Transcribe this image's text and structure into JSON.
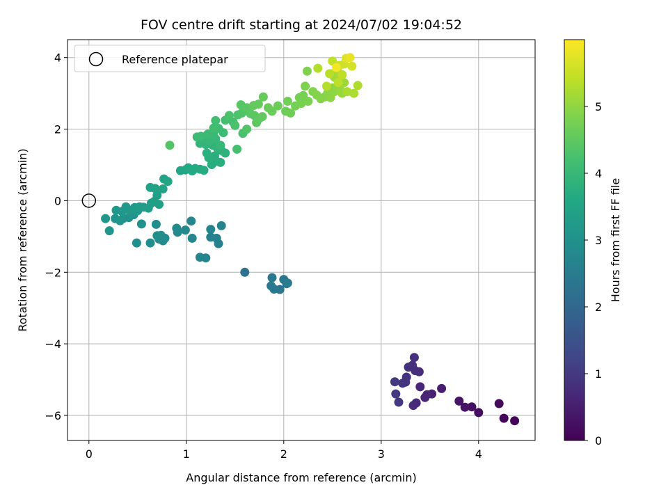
{
  "chart_data": {
    "type": "scatter",
    "title": "FOV centre drift starting at 2024/07/02 19:04:52",
    "xlabel": "Angular distance from reference (arcmin)",
    "ylabel": "Rotation from reference (arcmin)",
    "colorbar_label": "Hours from first FF file",
    "colormap": "viridis",
    "xlim": [
      -0.22,
      4.58
    ],
    "ylim": [
      -6.7,
      4.5
    ],
    "clim": [
      0,
      6.0
    ],
    "xticks": [
      "0",
      "1",
      "2",
      "3",
      "4"
    ],
    "yticks": [
      "−6",
      "−4",
      "−2",
      "0",
      "2",
      "4"
    ],
    "cticks": [
      "0",
      "1",
      "2",
      "3",
      "4",
      "5"
    ],
    "grid": true,
    "legend": {
      "position": "top-left",
      "entries": [
        "Reference platepar"
      ]
    },
    "reference_point": {
      "x": 0,
      "y": 0
    },
    "points": [
      [
        4.37,
        -6.15,
        0.05
      ],
      [
        4.26,
        -6.08,
        0.1
      ],
      [
        4.21,
        -5.67,
        0.15
      ],
      [
        4.0,
        -5.92,
        0.2
      ],
      [
        3.93,
        -5.76,
        0.25
      ],
      [
        3.86,
        -5.77,
        0.3
      ],
      [
        3.8,
        -5.6,
        0.35
      ],
      [
        3.62,
        -5.25,
        0.5
      ],
      [
        3.52,
        -5.4,
        0.55
      ],
      [
        3.47,
        -5.42,
        0.6
      ],
      [
        3.45,
        -5.5,
        0.62
      ],
      [
        3.4,
        -5.2,
        0.65
      ],
      [
        3.36,
        -5.65,
        0.7
      ],
      [
        3.33,
        -5.72,
        0.72
      ],
      [
        3.39,
        -4.78,
        0.75
      ],
      [
        3.35,
        -4.75,
        0.78
      ],
      [
        3.32,
        -4.6,
        0.8
      ],
      [
        3.28,
        -4.65,
        0.82
      ],
      [
        3.34,
        -4.38,
        0.85
      ],
      [
        3.26,
        -4.93,
        0.88
      ],
      [
        3.25,
        -5.07,
        0.9
      ],
      [
        3.22,
        -5.1,
        0.92
      ],
      [
        3.18,
        -5.63,
        0.95
      ],
      [
        3.15,
        -5.4,
        0.97
      ],
      [
        3.14,
        -5.06,
        1.0
      ],
      [
        1.6,
        -2.0,
        2.25
      ],
      [
        2.03,
        -2.32,
        2.3
      ],
      [
        2.0,
        -2.2,
        2.33
      ],
      [
        1.96,
        -2.48,
        2.36
      ],
      [
        1.9,
        -2.47,
        2.4
      ],
      [
        1.87,
        -2.38,
        2.42
      ],
      [
        1.88,
        -2.15,
        2.45
      ],
      [
        2.04,
        -2.3,
        2.48
      ],
      [
        1.33,
        -1.2,
        2.6
      ],
      [
        1.31,
        -1.05,
        2.62
      ],
      [
        1.36,
        -0.7,
        2.64
      ],
      [
        1.25,
        -1.02,
        2.66
      ],
      [
        1.25,
        -0.8,
        2.68
      ],
      [
        1.2,
        -1.6,
        2.7
      ],
      [
        1.14,
        -1.58,
        2.72
      ],
      [
        1.06,
        -1.05,
        2.74
      ],
      [
        1.05,
        -0.57,
        2.76
      ],
      [
        0.99,
        -0.82,
        2.78
      ],
      [
        0.91,
        -0.88,
        2.8
      ],
      [
        0.9,
        -0.77,
        2.82
      ],
      [
        0.78,
        -1.05,
        2.85
      ],
      [
        0.76,
        -1.12,
        2.87
      ],
      [
        0.74,
        -0.97,
        2.89
      ],
      [
        0.72,
        -1.07,
        2.9
      ],
      [
        0.7,
        -0.98,
        2.92
      ],
      [
        0.69,
        -0.66,
        2.93
      ],
      [
        0.63,
        -1.18,
        2.95
      ],
      [
        0.49,
        -1.18,
        2.97
      ],
      [
        0.54,
        -0.65,
        3.0
      ],
      [
        0.41,
        -0.47,
        3.02
      ],
      [
        0.46,
        -0.39,
        3.04
      ],
      [
        0.35,
        -0.5,
        3.06
      ],
      [
        0.32,
        -0.56,
        3.08
      ],
      [
        0.27,
        -0.5,
        3.1
      ],
      [
        0.21,
        -0.84,
        3.12
      ],
      [
        0.17,
        -0.5,
        3.14
      ],
      [
        0.28,
        -0.27,
        3.16
      ],
      [
        0.34,
        -0.3,
        3.18
      ],
      [
        0.38,
        -0.17,
        3.2
      ],
      [
        0.42,
        -0.28,
        3.22
      ],
      [
        0.47,
        -0.19,
        3.24
      ],
      [
        0.5,
        -0.28,
        3.26
      ],
      [
        0.52,
        -0.17,
        3.28
      ],
      [
        0.56,
        -0.18,
        3.3
      ],
      [
        0.61,
        -0.21,
        3.32
      ],
      [
        0.64,
        -0.07,
        3.34
      ],
      [
        0.67,
        -0.02,
        3.36
      ],
      [
        0.7,
        0.15,
        3.38
      ],
      [
        0.72,
        -0.1,
        3.4
      ],
      [
        0.68,
        0.34,
        3.42
      ],
      [
        0.63,
        0.37,
        3.44
      ],
      [
        0.76,
        0.33,
        3.46
      ],
      [
        0.77,
        0.61,
        3.48
      ],
      [
        0.81,
        0.54,
        3.5
      ],
      [
        0.94,
        0.84,
        3.55
      ],
      [
        0.99,
        0.86,
        3.58
      ],
      [
        1.02,
        0.92,
        3.6
      ],
      [
        1.06,
        0.83,
        3.62
      ],
      [
        1.09,
        0.9,
        3.64
      ],
      [
        1.14,
        0.88,
        3.66
      ],
      [
        1.18,
        0.85,
        3.68
      ],
      [
        1.26,
        1.01,
        3.7
      ],
      [
        1.31,
        1.1,
        3.72
      ],
      [
        1.35,
        1.07,
        3.74
      ],
      [
        1.29,
        1.25,
        3.76
      ],
      [
        1.23,
        1.2,
        3.78
      ],
      [
        1.21,
        1.33,
        3.8
      ],
      [
        1.36,
        1.4,
        3.82
      ],
      [
        1.4,
        1.33,
        3.84
      ],
      [
        1.32,
        1.46,
        3.86
      ],
      [
        1.27,
        1.55,
        3.88
      ],
      [
        1.2,
        1.57,
        3.9
      ],
      [
        1.14,
        1.6,
        3.92
      ],
      [
        1.18,
        1.72,
        3.94
      ],
      [
        1.24,
        1.68,
        3.96
      ],
      [
        1.3,
        1.73,
        3.98
      ],
      [
        1.35,
        1.55,
        4.0
      ],
      [
        1.28,
        1.86,
        4.02
      ],
      [
        1.22,
        1.86,
        4.04
      ],
      [
        1.15,
        1.8,
        4.06
      ],
      [
        1.11,
        1.78,
        4.08
      ],
      [
        1.38,
        1.9,
        4.1
      ],
      [
        1.33,
        2.02,
        4.12
      ],
      [
        1.28,
        2.03,
        4.14
      ],
      [
        1.3,
        2.24,
        4.16
      ],
      [
        1.4,
        2.25,
        4.18
      ],
      [
        1.48,
        2.2,
        4.2
      ],
      [
        1.52,
        1.44,
        4.22
      ],
      [
        1.58,
        1.88,
        4.24
      ],
      [
        1.5,
        2.1,
        4.26
      ],
      [
        1.44,
        2.38,
        4.28
      ],
      [
        1.53,
        2.4,
        4.3
      ],
      [
        1.57,
        2.45,
        4.32
      ],
      [
        1.62,
        2.0,
        4.34
      ],
      [
        0.83,
        1.55,
        4.36
      ],
      [
        1.56,
        2.68,
        4.4
      ],
      [
        1.62,
        2.6,
        4.42
      ],
      [
        1.66,
        2.43,
        4.44
      ],
      [
        1.7,
        2.38,
        4.46
      ],
      [
        1.72,
        2.18,
        4.48
      ],
      [
        1.75,
        2.3,
        4.5
      ],
      [
        1.78,
        2.35,
        4.52
      ],
      [
        1.69,
        2.66,
        4.54
      ],
      [
        1.74,
        2.7,
        4.56
      ],
      [
        1.79,
        2.9,
        4.58
      ],
      [
        1.84,
        2.6,
        4.6
      ],
      [
        1.88,
        2.5,
        4.62
      ],
      [
        1.94,
        2.65,
        4.64
      ],
      [
        2.02,
        2.5,
        4.66
      ],
      [
        2.07,
        2.45,
        4.68
      ],
      [
        2.04,
        2.78,
        4.7
      ],
      [
        2.12,
        2.65,
        4.72
      ],
      [
        2.16,
        2.88,
        4.74
      ],
      [
        2.2,
        2.94,
        4.76
      ],
      [
        2.18,
        2.72,
        4.78
      ],
      [
        2.25,
        2.78,
        4.8
      ],
      [
        2.22,
        3.2,
        4.82
      ],
      [
        2.24,
        3.62,
        4.84
      ],
      [
        2.3,
        3.05,
        4.86
      ],
      [
        2.34,
        2.95,
        4.88
      ],
      [
        2.38,
        2.85,
        4.9
      ],
      [
        2.42,
        2.9,
        4.92
      ],
      [
        2.45,
        3.0,
        4.94
      ],
      [
        2.48,
        2.88,
        4.96
      ],
      [
        2.5,
        3.15,
        4.98
      ],
      [
        2.52,
        3.05,
        5.0
      ],
      [
        2.55,
        3.2,
        5.02
      ],
      [
        2.58,
        3.1,
        5.05
      ],
      [
        2.6,
        3.0,
        5.08
      ],
      [
        2.62,
        3.3,
        5.1
      ],
      [
        2.48,
        3.55,
        5.12
      ],
      [
        2.52,
        3.45,
        5.15
      ],
      [
        2.55,
        3.62,
        5.18
      ],
      [
        2.58,
        3.5,
        5.2
      ],
      [
        2.65,
        3.05,
        5.22
      ],
      [
        2.72,
        3.0,
        5.25
      ],
      [
        2.76,
        3.22,
        5.28
      ],
      [
        2.35,
        3.7,
        5.3
      ],
      [
        2.44,
        3.2,
        5.33
      ],
      [
        2.47,
        3.55,
        5.36
      ],
      [
        2.56,
        3.3,
        5.39
      ],
      [
        2.6,
        3.52,
        5.42
      ],
      [
        2.5,
        3.9,
        5.45
      ],
      [
        2.57,
        3.78,
        5.5
      ],
      [
        2.62,
        3.82,
        5.55
      ],
      [
        2.7,
        3.76,
        5.6
      ],
      [
        2.64,
        3.98,
        5.7
      ],
      [
        2.68,
        4.0,
        5.8
      ],
      [
        2.54,
        3.72,
        5.9
      ]
    ]
  }
}
